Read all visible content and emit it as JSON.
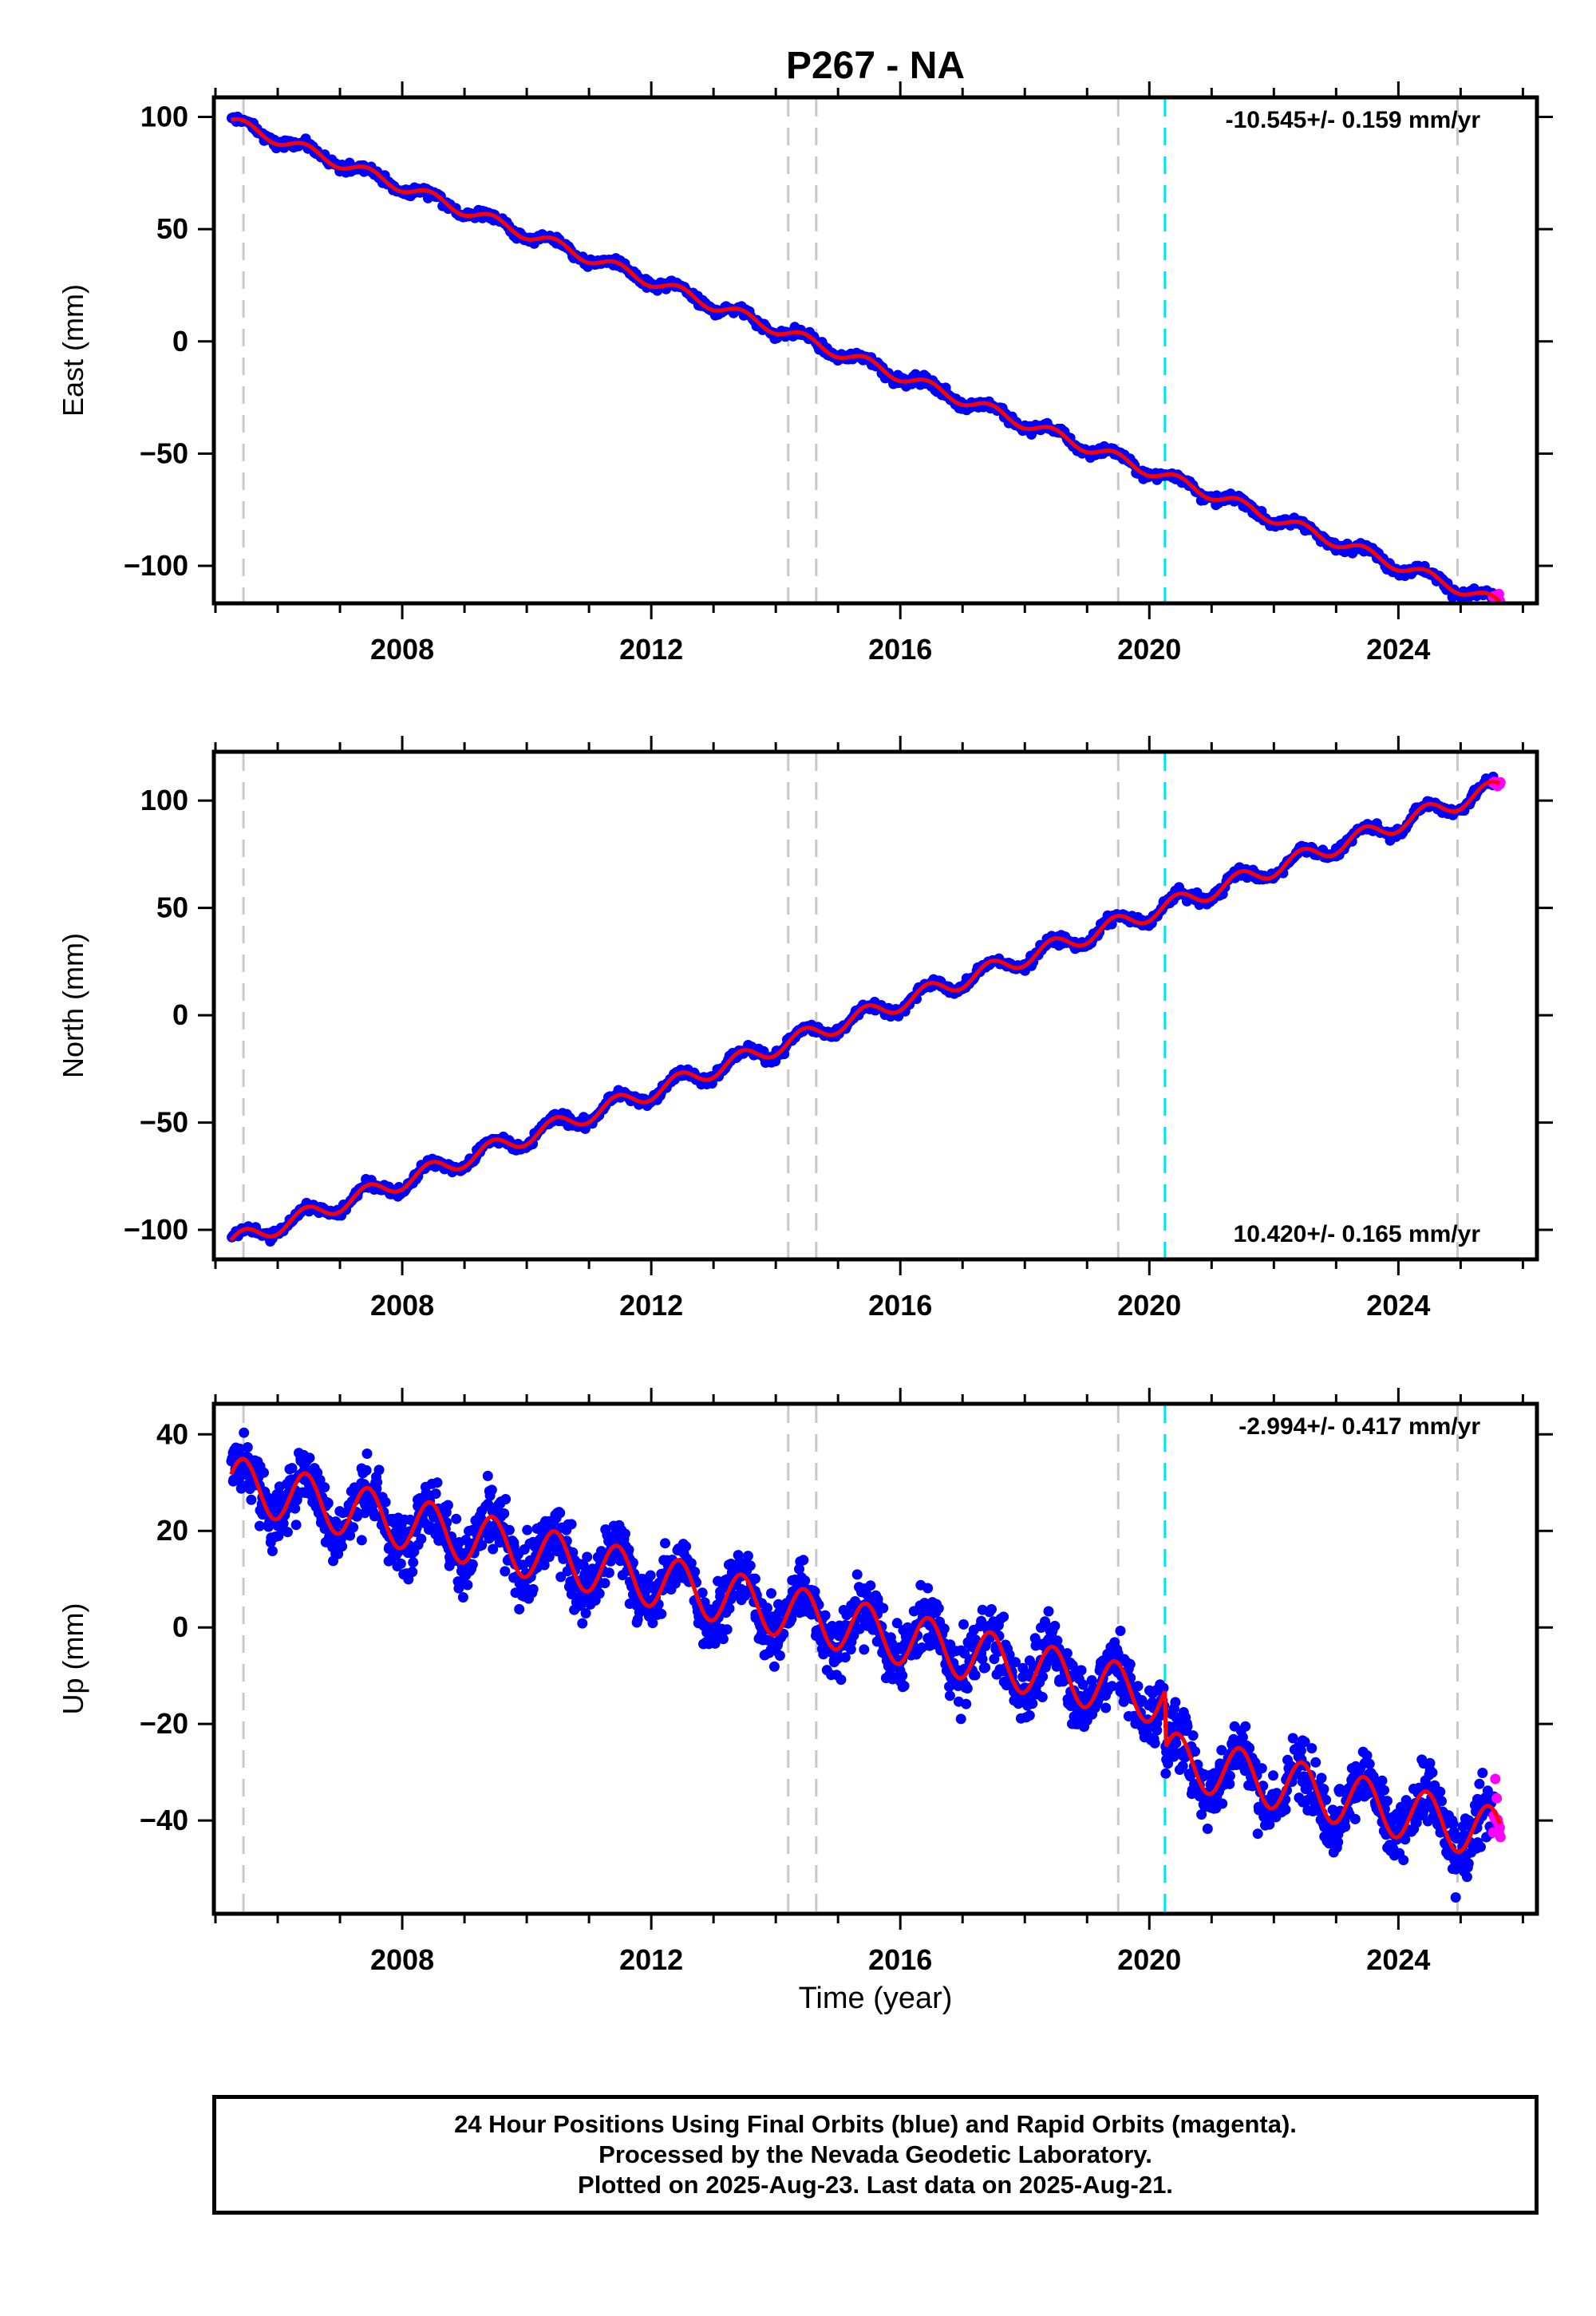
{
  "chart_data": {
    "type": "scatter",
    "title": "P267 - NA",
    "xlabel": "Time (year)",
    "xlim": [
      2005.0,
      2026.2
    ],
    "xticks": [
      2008,
      2012,
      2016,
      2020,
      2024
    ],
    "event_lines": [
      {
        "x": 2005.45,
        "color": "#c8c8c8"
      },
      {
        "x": 2014.2,
        "color": "#c8c8c8"
      },
      {
        "x": 2014.65,
        "color": "#c8c8c8"
      },
      {
        "x": 2019.5,
        "color": "#c8c8c8"
      },
      {
        "x": 2020.25,
        "color": "#00e5ee"
      },
      {
        "x": 2024.95,
        "color": "#c8c8c8"
      }
    ],
    "panels": [
      {
        "component": "east",
        "ylabel": "East (mm)",
        "ylim": [
          -116,
          108
        ],
        "yticks": [
          -100,
          -50,
          0,
          50,
          100
        ],
        "ytick_labels": [
          "−100",
          "−50",
          "0",
          "50",
          "100"
        ],
        "velocity_label": "-10.545+/- 0.159 mm/yr",
        "velocity_label_position": "top-right",
        "start_value": 98,
        "trend": -10.545,
        "seasonal_amplitude": 2.5,
        "noise": 1.5,
        "final_orbits_color": "#0000ff",
        "rapid_orbits_color": "#ff00ff",
        "model_color": "#ff0000"
      },
      {
        "component": "north",
        "ylabel": "North (mm)",
        "ylim": [
          -113,
          122
        ],
        "yticks": [
          -100,
          -50,
          0,
          50,
          100
        ],
        "ytick_labels": [
          "−100",
          "−50",
          "0",
          "50",
          "100"
        ],
        "velocity_label": "10.420+/- 0.165 mm/yr",
        "velocity_label_position": "bottom-right",
        "start_value": -106,
        "trend": 10.42,
        "seasonal_amplitude": 4,
        "noise": 1.6,
        "final_orbits_color": "#0000ff",
        "rapid_orbits_color": "#ff00ff",
        "model_color": "#ff0000"
      },
      {
        "component": "up",
        "ylabel": "Up (mm)",
        "ylim": [
          -59,
          46
        ],
        "yticks": [
          -40,
          -20,
          0,
          20,
          40
        ],
        "ytick_labels": [
          "−40",
          "−20",
          "0",
          "20",
          "40"
        ],
        "velocity_label": "-2.994+/- 0.417 mm/yr",
        "velocity_label_position": "top-right",
        "start_value": 30,
        "trend": -2.994,
        "seasonal_amplitude": 5.5,
        "noise": 4.5,
        "offset_at_x": 2020.25,
        "offset_mm": -12,
        "final_orbits_color": "#0000ff",
        "rapid_orbits_color": "#ff00ff",
        "model_color": "#ff0000"
      }
    ]
  },
  "footer": {
    "line1": "24 Hour Positions Using Final Orbits (blue) and Rapid Orbits (magenta).",
    "line2": "Processed by the Nevada Geodetic Laboratory.",
    "line3": "Plotted on 2025-Aug-23. Last data on 2025-Aug-21."
  }
}
